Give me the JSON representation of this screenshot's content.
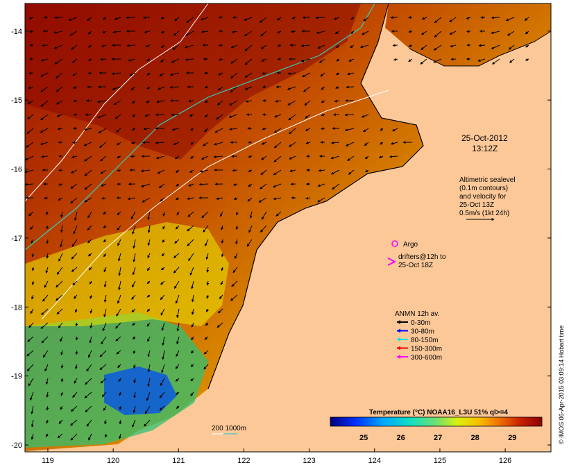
{
  "map": {
    "lon_ticks": [
      "119",
      "120",
      "121",
      "122",
      "123",
      "124",
      "125",
      "126"
    ],
    "lat_ticks": [
      "-14",
      "-15",
      "-16",
      "-17",
      "-18",
      "-19",
      "-20"
    ],
    "lon_range": [
      118.65,
      126.7
    ],
    "lat_range": [
      -20.1,
      -13.6
    ]
  },
  "annotations": {
    "datetime_line1": "25-Oct-2012",
    "datetime_line2": "13:12Z",
    "altimetry_lines": [
      "Altimetric sealevel",
      "(0.1m contours)",
      "and velocity for",
      "25-Oct 13Z",
      "0.5m/s (1kt 24h)"
    ],
    "argo_label": "Argo",
    "drifters_line1": "drifters@12h to",
    "drifters_line2": "25-Oct 18Z",
    "anmn_title": "ANMN 12h av.",
    "anmn_items": [
      {
        "label": "0-30m",
        "color": "#000000"
      },
      {
        "label": "30-80m",
        "color": "#0000ff"
      },
      {
        "label": "80-150m",
        "color": "#00e5e5"
      },
      {
        "label": "150-300m",
        "color": "#ff0000"
      },
      {
        "label": "300-600m",
        "color": "#ff00ff"
      }
    ],
    "depth_contour_label": "200  1000m",
    "credit": "© IMOS 06-Apr-2015 03:09:14 Hobart time"
  },
  "colorbar": {
    "title": "Temperature (°C) NOAA16_L3U 51% ql>=4",
    "ticks": [
      "25",
      "26",
      "27",
      "28",
      "29"
    ],
    "range": [
      24.1,
      29.8
    ],
    "colors": [
      "#00007a",
      "#0020ff",
      "#00a0ff",
      "#10e0d0",
      "#60e080",
      "#c0f020",
      "#f8f000",
      "#f8b000",
      "#f07000",
      "#d83000",
      "#a00000",
      "#8a0000"
    ]
  }
}
